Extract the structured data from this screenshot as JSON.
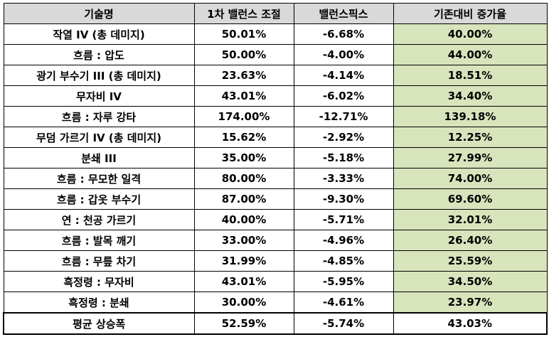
{
  "table": {
    "headers": [
      "기술명",
      "1차 밸런스 조절",
      "밸런스픽스",
      "기존대비 증가율"
    ],
    "rows": [
      [
        "작열 IV (총 데미지)",
        "50.01%",
        "-6.68%",
        "40.00%"
      ],
      [
        "흐름 : 압도",
        "50.00%",
        "-4.00%",
        "44.00%"
      ],
      [
        "광기 부수기 III (총 데미지)",
        "23.63%",
        "-4.14%",
        "18.51%"
      ],
      [
        "무자비 IV",
        "43.01%",
        "-6.02%",
        "34.40%"
      ],
      [
        "흐름 : 자루 강타",
        "174.00%",
        "-12.71%",
        "139.18%"
      ],
      [
        "무덤 가르기 IV (총 데미지)",
        "15.62%",
        "-2.92%",
        "12.25%"
      ],
      [
        "분쇄 III",
        "35.00%",
        "-5.18%",
        "27.99%"
      ],
      [
        "흐름 : 무모한 일격",
        "80.00%",
        "-3.33%",
        "74.00%"
      ],
      [
        "흐름 : 갑옷 부수기",
        "87.00%",
        "-9.30%",
        "69.60%"
      ],
      [
        "연 : 천공 가르기",
        "40.00%",
        "-5.71%",
        "32.01%"
      ],
      [
        "흐름 : 발목 깨기",
        "33.00%",
        "-4.96%",
        "26.40%"
      ],
      [
        "흐름 : 무릎 차기",
        "31.99%",
        "-4.85%",
        "25.59%"
      ],
      [
        "흑정령 : 무자비",
        "43.01%",
        "-5.95%",
        "34.50%"
      ],
      [
        "흑정령 : 분쇄",
        "30.00%",
        "-4.61%",
        "23.97%"
      ]
    ],
    "average": [
      "평균 상승폭",
      "52.59%",
      "-5.74%",
      "43.03%"
    ]
  },
  "colors": {
    "header_bg": "#d9d9d9",
    "increase_bg": "#d8e4bc",
    "border": "#000000"
  }
}
